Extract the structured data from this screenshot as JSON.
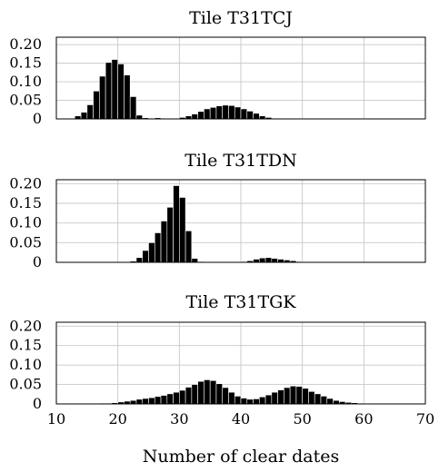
{
  "chart_data": [
    {
      "type": "bar",
      "title": "Tile T31TCJ",
      "xlim": [
        10,
        70
      ],
      "ylim": [
        0,
        0.22
      ],
      "yticks": [
        0,
        0.05,
        0.1,
        0.15,
        0.2
      ],
      "ytick_labels": [
        "0",
        "0.05",
        "0.10",
        "0.15",
        "0.20"
      ],
      "grid": true,
      "bin_start": 10,
      "bin_width": 1,
      "values": [
        0,
        0,
        0.002,
        0.008,
        0.018,
        0.038,
        0.075,
        0.115,
        0.152,
        0.16,
        0.148,
        0.118,
        0.06,
        0.01,
        0.003,
        0.002,
        0.003,
        0.002,
        0.001,
        0.002,
        0.004,
        0.008,
        0.013,
        0.02,
        0.027,
        0.031,
        0.035,
        0.037,
        0.036,
        0.032,
        0.027,
        0.021,
        0.015,
        0.008,
        0.004,
        0.002,
        0.001,
        0,
        0,
        0,
        0,
        0,
        0,
        0,
        0,
        0,
        0,
        0,
        0,
        0,
        0,
        0,
        0,
        0,
        0,
        0,
        0,
        0,
        0,
        0
      ]
    },
    {
      "type": "bar",
      "title": "Tile T31TDN",
      "xlim": [
        10,
        70
      ],
      "ylim": [
        0,
        0.21
      ],
      "yticks": [
        0,
        0.05,
        0.1,
        0.15,
        0.2
      ],
      "ytick_labels": [
        "0",
        "0.05",
        "0.10",
        "0.15",
        "0.20"
      ],
      "grid": true,
      "bin_start": 10,
      "bin_width": 1,
      "values": [
        0,
        0,
        0,
        0,
        0,
        0,
        0,
        0,
        0,
        0,
        0,
        0,
        0.003,
        0.012,
        0.03,
        0.05,
        0.075,
        0.105,
        0.14,
        0.195,
        0.165,
        0.08,
        0.01,
        0.002,
        0.001,
        0.001,
        0.001,
        0.001,
        0.001,
        0.001,
        0.002,
        0.004,
        0.008,
        0.011,
        0.012,
        0.01,
        0.008,
        0.006,
        0.004,
        0.002,
        0.001,
        0,
        0,
        0,
        0,
        0,
        0,
        0,
        0,
        0,
        0,
        0,
        0,
        0,
        0,
        0,
        0,
        0,
        0,
        0
      ]
    },
    {
      "type": "bar",
      "title": "Tile T31TGK",
      "xlim": [
        10,
        70
      ],
      "ylim": [
        0,
        0.21
      ],
      "yticks": [
        0,
        0.05,
        0.1,
        0.15,
        0.2
      ],
      "ytick_labels": [
        "0",
        "0.05",
        "0.10",
        "0.15",
        "0.20"
      ],
      "xticks": [
        10,
        20,
        30,
        40,
        50,
        60,
        70
      ],
      "xtick_labels": [
        "10",
        "20",
        "30",
        "40",
        "50",
        "60",
        "70"
      ],
      "xlabel": "Number of clear dates",
      "grid": true,
      "bin_start": 10,
      "bin_width": 1,
      "values": [
        0,
        0,
        0,
        0,
        0,
        0,
        0.001,
        0.002,
        0.002,
        0.003,
        0.005,
        0.007,
        0.009,
        0.012,
        0.014,
        0.016,
        0.019,
        0.022,
        0.026,
        0.03,
        0.035,
        0.043,
        0.05,
        0.058,
        0.062,
        0.06,
        0.052,
        0.042,
        0.03,
        0.02,
        0.015,
        0.012,
        0.013,
        0.018,
        0.023,
        0.03,
        0.036,
        0.042,
        0.046,
        0.045,
        0.04,
        0.032,
        0.026,
        0.02,
        0.014,
        0.009,
        0.006,
        0.004,
        0.003,
        0.002,
        0.001,
        0.001,
        0.001,
        0,
        0,
        0,
        0,
        0,
        0,
        0
      ]
    }
  ]
}
